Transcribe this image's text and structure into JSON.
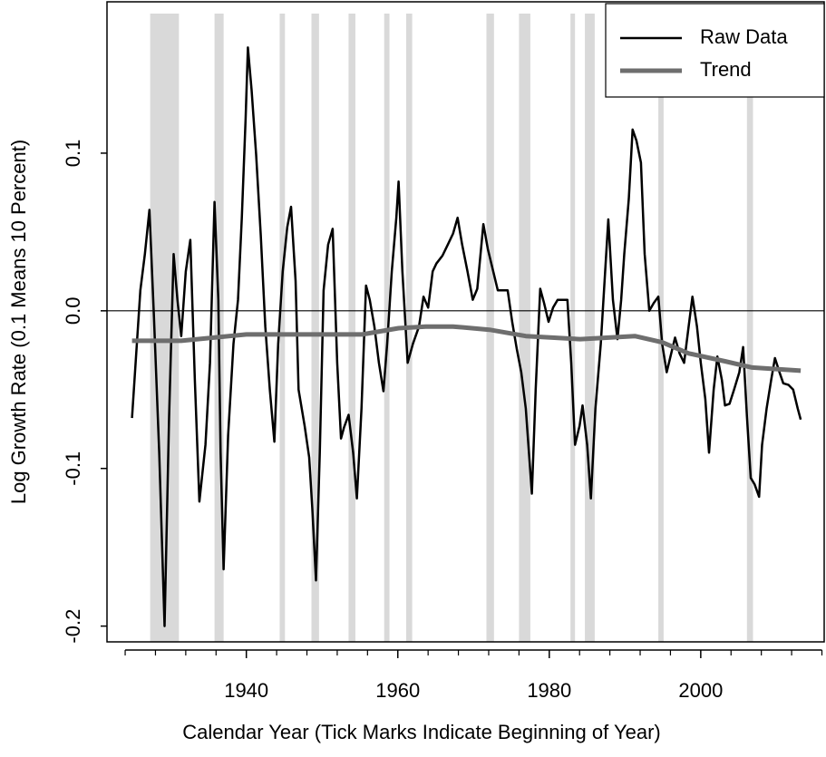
{
  "chart_data": {
    "type": "line",
    "xlabel": "Calendar Year (Tick Marks Indicate Beginning of Year)",
    "ylabel": "Log Growth Rate (0.1 Means 10 Percent)",
    "xlim": [
      1921.6,
      2016.3
    ],
    "ylim": [
      -0.21,
      0.196
    ],
    "xticks": [
      1940,
      1960,
      1980,
      2000
    ],
    "xminor": [
      1924,
      1928,
      1932,
      1936,
      1944,
      1948,
      1952,
      1956,
      1964,
      1968,
      1972,
      1976,
      1984,
      1988,
      1992,
      1996,
      2004,
      2008,
      2012,
      2016
    ],
    "yticks": [
      -0.2,
      -0.1,
      {
        "value": 0,
        "label": "0.0"
      },
      0.1
    ],
    "hline": 0,
    "shading_color": "#d9d9d9",
    "shading": [
      [
        1927.3,
        1931.1
      ],
      [
        1935.8,
        1937.0
      ],
      [
        1944.4,
        1945.1
      ],
      [
        1948.6,
        1949.6
      ],
      [
        1953.5,
        1954.4
      ],
      [
        1958.2,
        1958.9
      ],
      [
        1961.1,
        1961.9
      ],
      [
        1971.7,
        1972.7
      ],
      [
        1976.0,
        1977.5
      ],
      [
        1982.8,
        1983.4
      ],
      [
        1984.7,
        1986.0
      ],
      [
        1994.4,
        1995.1
      ],
      [
        2006.1,
        2006.9
      ]
    ],
    "legend": "top-right",
    "x": [
      1924.9,
      1926.0,
      1926.6,
      1927.2,
      1927.8,
      1928.5,
      1929.2,
      1929.8,
      1930.4,
      1930.9,
      1931.4,
      1932.0,
      1932.6,
      1933.2,
      1933.8,
      1934.6,
      1935.2,
      1935.8,
      1936.3,
      1936.6,
      1937.0,
      1937.6,
      1938.3,
      1938.9,
      1939.4,
      1939.9,
      1940.2,
      1940.7,
      1941.3,
      1941.9,
      1942.5,
      1943.1,
      1943.7,
      1944.2,
      1944.8,
      1945.4,
      1945.9,
      1946.5,
      1946.9,
      1947.7,
      1948.3,
      1948.7,
      1949.2,
      1949.7,
      1950.2,
      1950.8,
      1951.4,
      1952.0,
      1952.5,
      1952.9,
      1953.5,
      1954.1,
      1954.6,
      1955.2,
      1955.8,
      1956.3,
      1956.9,
      1957.5,
      1958.1,
      1958.6,
      1959.2,
      1959.8,
      1960.1,
      1960.6,
      1961.3,
      1962.0,
      1962.8,
      1963.4,
      1964.0,
      1964.6,
      1965.1,
      1965.9,
      1966.6,
      1967.3,
      1967.9,
      1968.5,
      1969.2,
      1969.9,
      1970.5,
      1971.3,
      1971.9,
      1972.6,
      1973.2,
      1973.9,
      1974.5,
      1975.1,
      1975.7,
      1976.3,
      1976.9,
      1977.7,
      1978.2,
      1978.8,
      1979.3,
      1979.9,
      1980.5,
      1981.1,
      1981.8,
      1982.4,
      1982.9,
      1983.4,
      1984.0,
      1984.4,
      1985.0,
      1985.5,
      1986.1,
      1986.8,
      1987.3,
      1987.8,
      1988.4,
      1989.0,
      1989.5,
      1989.9,
      1990.5,
      1991.0,
      1991.5,
      1992.1,
      1992.6,
      1993.2,
      1993.8,
      1994.4,
      1994.9,
      1995.5,
      1996.1,
      1996.6,
      1997.2,
      1997.8,
      1998.4,
      1998.9,
      1999.5,
      2000.0,
      2000.6,
      2001.1,
      2001.7,
      2002.2,
      2002.8,
      2003.2,
      2003.8,
      2004.4,
      2005.1,
      2005.6,
      2006.1,
      2006.6,
      2007.1,
      2007.7,
      2008.1,
      2008.7,
      2009.3,
      2009.8,
      2010.4,
      2010.9,
      2011.6,
      2012.2,
      2012.8,
      2013.2
    ],
    "series": [
      {
        "name": "Raw Data",
        "color": "#000000",
        "width": 2.5,
        "values": [
          -0.068,
          0.013,
          0.036,
          0.064,
          -0.004,
          -0.09,
          -0.2,
          -0.067,
          0.036,
          0.007,
          -0.016,
          0.025,
          0.045,
          -0.044,
          -0.121,
          -0.085,
          -0.033,
          0.069,
          0.007,
          -0.09,
          -0.164,
          -0.079,
          -0.021,
          0.007,
          0.059,
          0.122,
          0.167,
          0.14,
          0.099,
          0.048,
          -0.01,
          -0.05,
          -0.083,
          -0.021,
          0.025,
          0.053,
          0.066,
          0.019,
          -0.05,
          -0.073,
          -0.093,
          -0.125,
          -0.171,
          -0.09,
          0.013,
          0.042,
          0.052,
          -0.033,
          -0.081,
          -0.074,
          -0.066,
          -0.09,
          -0.119,
          -0.062,
          0.016,
          0.007,
          -0.01,
          -0.033,
          -0.051,
          -0.021,
          0.025,
          0.059,
          0.082,
          0.025,
          -0.033,
          -0.021,
          -0.01,
          0.009,
          0.002,
          0.025,
          0.03,
          0.035,
          0.042,
          0.049,
          0.059,
          0.042,
          0.025,
          0.007,
          0.014,
          0.055,
          0.039,
          0.025,
          0.013,
          0.013,
          0.013,
          -0.007,
          -0.024,
          -0.039,
          -0.062,
          -0.116,
          -0.05,
          0.014,
          0.005,
          -0.007,
          0.002,
          0.007,
          0.007,
          0.007,
          -0.033,
          -0.085,
          -0.073,
          -0.06,
          -0.085,
          -0.119,
          -0.062,
          -0.021,
          0.019,
          0.058,
          0.007,
          -0.018,
          0.007,
          0.036,
          0.071,
          0.115,
          0.108,
          0.094,
          0.036,
          0.0,
          0.005,
          0.009,
          -0.021,
          -0.039,
          -0.027,
          -0.017,
          -0.027,
          -0.033,
          -0.01,
          0.009,
          -0.01,
          -0.033,
          -0.056,
          -0.09,
          -0.05,
          -0.029,
          -0.044,
          -0.06,
          -0.059,
          -0.05,
          -0.039,
          -0.023,
          -0.067,
          -0.106,
          -0.11,
          -0.118,
          -0.085,
          -0.062,
          -0.044,
          -0.03,
          -0.039,
          -0.046,
          -0.047,
          -0.05,
          -0.062,
          -0.069
        ]
      },
      {
        "name": "Trend",
        "color": "#6e6e6e",
        "width": 5,
        "x": [
          1924.9,
          1931.4,
          1940.0,
          1946.9,
          1955.3,
          1960.1,
          1963.7,
          1967.3,
          1972.1,
          1976.9,
          1984.1,
          1991.3,
          1994.9,
          1998.4,
          2003.2,
          2006.8,
          2013.2
        ],
        "values": [
          -0.019,
          -0.019,
          -0.015,
          -0.015,
          -0.015,
          -0.011,
          -0.01,
          -0.01,
          -0.012,
          -0.016,
          -0.018,
          -0.016,
          -0.02,
          -0.027,
          -0.032,
          -0.036,
          -0.038
        ]
      }
    ]
  }
}
